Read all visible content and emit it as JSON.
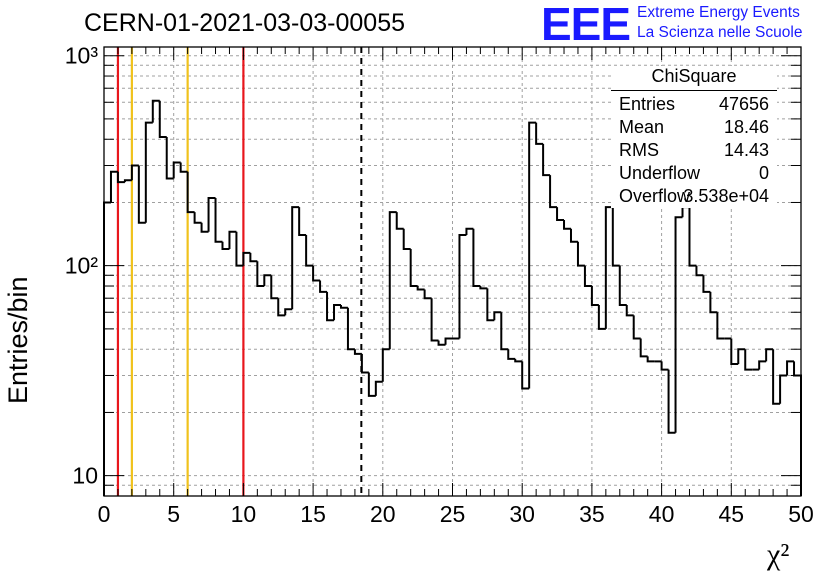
{
  "title": "CERN-01-2021-03-03-00055",
  "logo": {
    "mark": "EEE",
    "line1": "Extreme Energy Events",
    "line2": "La Scienza nelle Scuole"
  },
  "stats": {
    "title": "ChiSquare",
    "rows": [
      {
        "label": "Entries",
        "value": "47656"
      },
      {
        "label": "Mean",
        "value": "18.46"
      },
      {
        "label": "RMS",
        "value": "14.43"
      },
      {
        "label": "Underflow",
        "value": "0"
      },
      {
        "label": "Overflow",
        "value": "3.538e+04"
      }
    ]
  },
  "chart_data": {
    "type": "histogram",
    "xlabel": "χ²",
    "ylabel": "Entries/bin",
    "xlim": [
      0,
      50
    ],
    "ylim": [
      8,
      1100
    ],
    "yscale": "log",
    "grid": true,
    "bin_width": 0.5,
    "x_ticks": [
      "0",
      "5",
      "10",
      "15",
      "20",
      "25",
      "30",
      "35",
      "40",
      "45",
      "50"
    ],
    "y_ticks": [
      {
        "value": 10,
        "label": "10"
      },
      {
        "value": 100,
        "label": "10²"
      },
      {
        "value": 1000,
        "label": "10³"
      }
    ],
    "values": [
      200,
      280,
      250,
      255,
      300,
      160,
      480,
      610,
      410,
      260,
      310,
      280,
      180,
      160,
      145,
      210,
      130,
      120,
      145,
      100,
      115,
      105,
      80,
      90,
      70,
      58,
      62,
      190,
      140,
      100,
      85,
      75,
      55,
      65,
      63,
      40,
      38,
      31,
      24,
      28,
      40,
      180,
      150,
      120,
      80,
      77,
      70,
      44,
      42,
      45,
      45,
      140,
      150,
      80,
      78,
      55,
      60,
      40,
      36,
      35,
      26,
      480,
      380,
      270,
      190,
      165,
      150,
      130,
      100,
      80,
      65,
      50,
      190,
      100,
      65,
      58,
      45,
      37,
      35,
      35,
      32,
      16,
      170,
      190,
      100,
      90,
      75,
      60,
      45,
      45,
      34,
      40,
      32,
      32,
      35,
      40,
      22,
      30,
      35,
      30
    ],
    "vertical_lines": [
      {
        "x": 1,
        "color": "#e8161c",
        "style": "solid"
      },
      {
        "x": 2,
        "color": "#f0c21c",
        "style": "solid"
      },
      {
        "x": 6,
        "color": "#f0c21c",
        "style": "solid"
      },
      {
        "x": 10,
        "color": "#e8161c",
        "style": "solid"
      },
      {
        "x": 18.46,
        "color": "#000000",
        "style": "dashed"
      }
    ]
  }
}
